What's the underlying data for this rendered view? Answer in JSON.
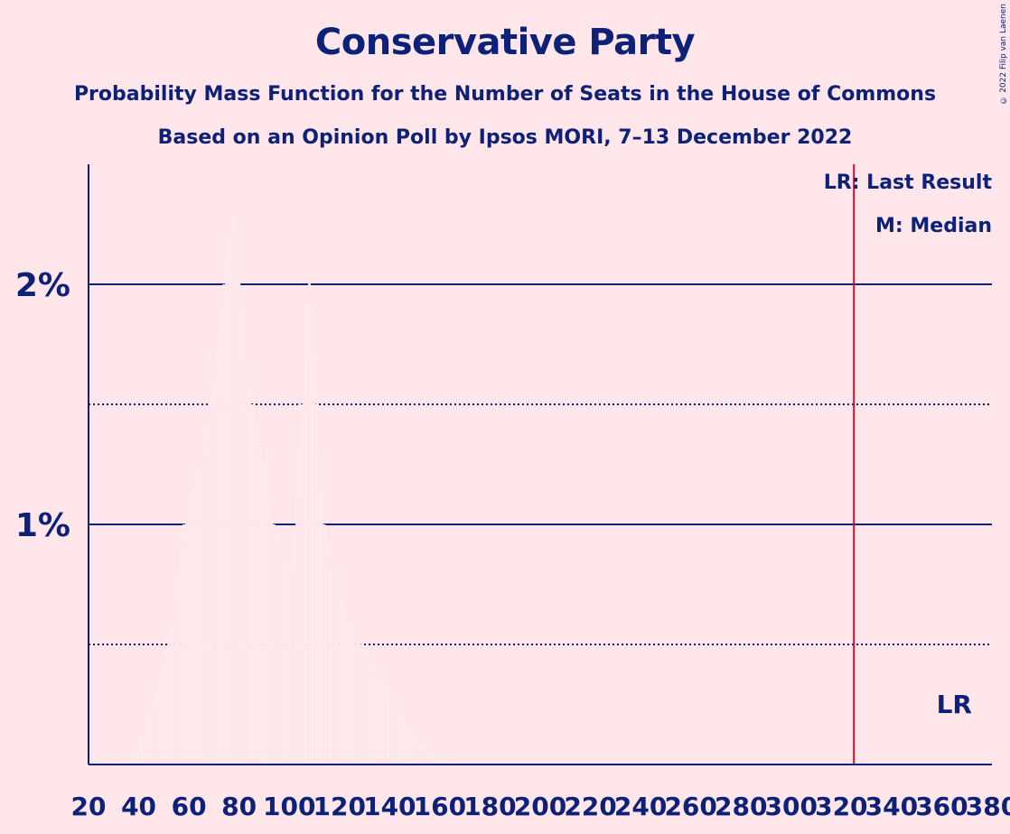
{
  "chart_data": {
    "type": "bar",
    "title": "Conservative Party",
    "subtitles": [
      "Probability Mass Function for the Number of Seats in the House of Commons",
      "Based on an Opinion Poll by Ipsos MORI, 7–13 December 2022"
    ],
    "copyright": "© 2022 Filip van Laenen",
    "xlabel": "",
    "ylabel": "",
    "xlim": [
      20,
      380
    ],
    "ylim": [
      0,
      2.5
    ],
    "x_ticks": [
      20,
      40,
      60,
      80,
      100,
      120,
      140,
      160,
      180,
      200,
      220,
      240,
      260,
      280,
      300,
      320,
      340,
      360,
      380
    ],
    "y_ticks": [
      {
        "value": 1,
        "label": "1%"
      },
      {
        "value": 2,
        "label": "2%"
      }
    ],
    "y_dotted_lines": [
      0.5,
      1.5
    ],
    "last_result": {
      "seat": 325,
      "marker": "LR"
    },
    "legend": [
      "LR: Last Result",
      "M: Median"
    ],
    "seats": [
      25,
      26,
      27,
      28,
      29,
      30,
      31,
      32,
      33,
      34,
      35,
      36,
      37,
      38,
      39,
      40,
      41,
      42,
      43,
      44,
      45,
      46,
      47,
      48,
      49,
      50,
      51,
      52,
      53,
      54,
      55,
      56,
      57,
      58,
      59,
      60,
      61,
      62,
      63,
      64,
      65,
      66,
      67,
      68,
      69,
      70,
      71,
      72,
      73,
      74,
      75,
      76,
      77,
      78,
      79,
      80,
      81,
      82,
      83,
      84,
      85,
      86,
      87,
      88,
      89,
      90,
      91,
      92,
      93,
      94,
      95,
      96,
      97,
      98,
      99,
      100,
      101,
      102,
      103,
      104,
      105,
      106,
      107,
      108,
      109,
      110,
      111,
      112,
      113,
      114,
      115,
      116,
      117,
      118,
      119,
      120,
      121,
      122,
      123,
      124,
      125,
      126,
      127,
      128,
      129,
      130,
      131,
      132,
      133,
      134,
      135,
      136,
      137,
      138,
      139,
      140,
      141,
      142,
      143,
      144,
      145,
      146,
      147,
      148,
      149,
      150,
      151,
      152,
      153,
      154,
      155,
      156,
      157,
      158,
      159,
      160,
      161,
      162,
      163,
      164,
      165,
      166,
      167,
      168,
      169,
      170,
      171,
      172,
      173,
      174,
      175,
      176,
      177,
      178,
      179,
      180
    ],
    "values": [
      0.0,
      0.0,
      0.0,
      0.0,
      0.01,
      0.01,
      0.01,
      0.01,
      0.01,
      0.02,
      0.02,
      0.03,
      0.05,
      0.06,
      0.07,
      0.11,
      0.13,
      0.15,
      0.18,
      0.2,
      0.23,
      0.26,
      0.3,
      0.34,
      0.38,
      0.42,
      0.46,
      0.5,
      0.56,
      0.62,
      0.7,
      0.8,
      0.9,
      1.0,
      1.05,
      1.1,
      1.12,
      1.15,
      1.2,
      1.27,
      1.31,
      1.35,
      1.4,
      1.45,
      1.52,
      1.6,
      1.7,
      1.8,
      1.9,
      2.0,
      2.1,
      2.2,
      2.27,
      2.3,
      2.2,
      2.05,
      1.9,
      1.78,
      1.66,
      1.56,
      1.5,
      1.46,
      1.4,
      1.32,
      1.25,
      1.18,
      1.1,
      1.05,
      1.02,
      1.0,
      0.98,
      0.93,
      0.9,
      0.86,
      0.83,
      0.82,
      0.86,
      0.96,
      1.12,
      1.3,
      1.5,
      1.7,
      1.9,
      2.05,
      1.9,
      1.7,
      1.5,
      1.3,
      1.12,
      1.0,
      0.92,
      0.86,
      0.82,
      0.78,
      0.76,
      0.72,
      0.68,
      0.64,
      0.62,
      0.6,
      0.58,
      0.56,
      0.55,
      0.53,
      0.5,
      0.48,
      0.46,
      0.44,
      0.42,
      0.4,
      0.38,
      0.36,
      0.34,
      0.32,
      0.3,
      0.28,
      0.26,
      0.24,
      0.22,
      0.2,
      0.18,
      0.16,
      0.14,
      0.12,
      0.11,
      0.1,
      0.09,
      0.08,
      0.07,
      0.06,
      0.05,
      0.04,
      0.04,
      0.03,
      0.03,
      0.02,
      0.02,
      0.02,
      0.01,
      0.01,
      0.01,
      0.01,
      0.01,
      0.0,
      0.0,
      0.0,
      0.0,
      0.0,
      0.0,
      0.0,
      0.0,
      0.0,
      0.0,
      0.0,
      0.0,
      0.0
    ]
  }
}
